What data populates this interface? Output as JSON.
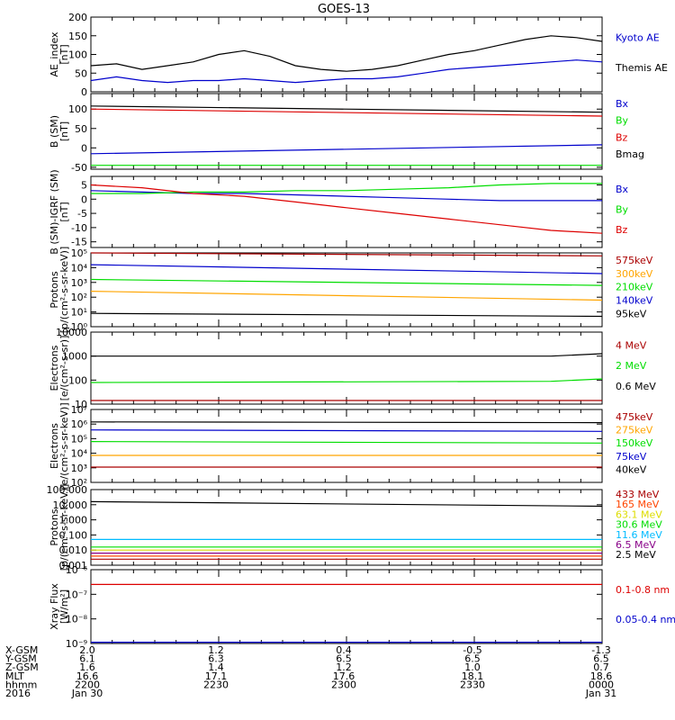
{
  "title": "GOES-13",
  "colors": {
    "black": "#000000",
    "blue": "#0000cc",
    "red": "#dd0000",
    "green": "#00dd00",
    "orange": "#ffa500",
    "skyblue": "#00bbff",
    "purple": "#880088",
    "yellow": "#dddd00",
    "darkred": "#aa0000",
    "orangered": "#ff4400"
  },
  "chart_data": [
    {
      "type": "line",
      "ylabel": [
        "AE_index",
        "[nT]"
      ],
      "ylim": [
        0,
        200
      ],
      "yticks": [
        "0",
        "50",
        "100",
        "150",
        "200"
      ],
      "ytick_values": [
        0,
        50,
        100,
        150,
        200
      ],
      "legend_position": "right",
      "series": [
        {
          "name": "Kyoto AE",
          "color": "blue",
          "x": [
            0,
            0.05,
            0.1,
            0.15,
            0.2,
            0.25,
            0.3,
            0.35,
            0.4,
            0.45,
            0.5,
            0.55,
            0.6,
            0.65,
            0.7,
            0.75,
            0.8,
            0.85,
            0.9,
            0.95,
            1.0
          ],
          "y": [
            30,
            40,
            30,
            25,
            30,
            30,
            35,
            30,
            25,
            30,
            35,
            35,
            40,
            50,
            60,
            65,
            70,
            75,
            80,
            85,
            80
          ]
        },
        {
          "name": "Themis AE",
          "color": "black",
          "x": [
            0,
            0.05,
            0.1,
            0.15,
            0.2,
            0.25,
            0.3,
            0.35,
            0.4,
            0.45,
            0.5,
            0.55,
            0.6,
            0.65,
            0.7,
            0.75,
            0.8,
            0.85,
            0.9,
            0.95,
            1.0
          ],
          "y": [
            70,
            75,
            60,
            70,
            80,
            100,
            110,
            95,
            70,
            60,
            55,
            60,
            70,
            85,
            100,
            110,
            125,
            140,
            150,
            145,
            135
          ]
        }
      ]
    },
    {
      "type": "line",
      "ylabel": [
        "B (SM)",
        "[nT]"
      ],
      "ylim": [
        -55,
        140
      ],
      "yticks": [
        "-50",
        "0",
        "50",
        "100"
      ],
      "ytick_values": [
        -50,
        0,
        50,
        100
      ],
      "legend_position": "right",
      "series": [
        {
          "name": "Bx",
          "color": "blue",
          "x": [
            0,
            1
          ],
          "y": [
            -15,
            8
          ]
        },
        {
          "name": "By",
          "color": "green",
          "x": [
            0,
            1
          ],
          "y": [
            -45,
            -45
          ]
        },
        {
          "name": "Bz",
          "color": "red",
          "x": [
            0,
            1
          ],
          "y": [
            100,
            82
          ]
        },
        {
          "name": "Bmag",
          "color": "black",
          "x": [
            0,
            1
          ],
          "y": [
            108,
            92
          ]
        }
      ]
    },
    {
      "type": "line",
      "ylabel": [
        "B (SM)-IGRF (SM)",
        "[nT]"
      ],
      "ylim": [
        -17,
        8
      ],
      "yticks": [
        "-15",
        "-10",
        "-5",
        "0",
        "5"
      ],
      "ytick_values": [
        -15,
        -10,
        -5,
        0,
        5
      ],
      "legend_position": "right",
      "series": [
        {
          "name": "Bx",
          "color": "blue",
          "x": [
            0,
            0.1,
            0.2,
            0.3,
            0.4,
            0.5,
            0.6,
            0.7,
            0.8,
            0.9,
            1.0
          ],
          "y": [
            3,
            2.5,
            2,
            2,
            1.5,
            1,
            0.5,
            0,
            -0.5,
            -0.5,
            -0.5
          ]
        },
        {
          "name": "By",
          "color": "green",
          "x": [
            0,
            0.1,
            0.2,
            0.3,
            0.4,
            0.5,
            0.6,
            0.7,
            0.8,
            0.9,
            1.0
          ],
          "y": [
            2,
            2,
            2.5,
            2.5,
            3,
            3,
            3.5,
            4,
            5,
            5.5,
            5.5
          ]
        },
        {
          "name": "Bz",
          "color": "red",
          "x": [
            0,
            0.1,
            0.2,
            0.3,
            0.4,
            0.5,
            0.6,
            0.7,
            0.8,
            0.9,
            1.0
          ],
          "y": [
            5,
            4,
            2,
            1,
            -1,
            -3,
            -5,
            -7,
            -9,
            -11,
            -12
          ]
        }
      ]
    },
    {
      "type": "line",
      "ylabel": [
        "Protons",
        "[p/(cm²-s-sr-keV)]"
      ],
      "scale": "log",
      "ylim_exp": [
        0,
        5
      ],
      "yticks": [
        "10⁰",
        "10¹",
        "10²",
        "10³",
        "10⁴",
        "10⁵"
      ],
      "ytick_values": [
        0,
        1,
        2,
        3,
        4,
        5
      ],
      "legend_position": "right",
      "series": [
        {
          "name": "575keV",
          "color": "darkred",
          "x": [
            0,
            1
          ],
          "y_log10": [
            5.0,
            4.8
          ]
        },
        {
          "name": "300keV",
          "color": "orange",
          "x": [
            0,
            1
          ],
          "y_log10": [
            2.4,
            1.8
          ]
        },
        {
          "name": "210keV",
          "color": "green",
          "x": [
            0,
            1
          ],
          "y_log10": [
            3.2,
            2.8
          ]
        },
        {
          "name": "140keV",
          "color": "blue",
          "x": [
            0,
            1
          ],
          "y_log10": [
            4.2,
            3.6
          ]
        },
        {
          "name": "95keV",
          "color": "black",
          "x": [
            0,
            1
          ],
          "y_log10": [
            0.9,
            0.7
          ]
        }
      ]
    },
    {
      "type": "line",
      "ylabel": [
        "Electrons",
        "[e/(cm²-s-sr)]"
      ],
      "scale": "log",
      "ylim_exp": [
        1,
        4
      ],
      "yticks": [
        "10",
        "100",
        "1000",
        "10000"
      ],
      "ytick_values": [
        1,
        2,
        3,
        4
      ],
      "legend_position": "right",
      "series": [
        {
          "name": "4 MeV",
          "color": "darkred",
          "x": [
            0,
            1
          ],
          "y_log10": [
            1.15,
            1.15
          ]
        },
        {
          "name": "2 MeV",
          "color": "green",
          "x": [
            0,
            0.9,
            1
          ],
          "y_log10": [
            1.9,
            1.95,
            2.05
          ]
        },
        {
          "name": "0.6 MeV",
          "color": "black",
          "x": [
            0,
            0.9,
            1
          ],
          "y_log10": [
            3.0,
            3.0,
            3.1
          ]
        }
      ]
    },
    {
      "type": "line",
      "ylabel": [
        "Electrons",
        "[e/(cm²-s-sr-keV)]"
      ],
      "scale": "log",
      "ylim_exp": [
        2,
        7
      ],
      "yticks": [
        "10²",
        "10³",
        "10⁴",
        "10⁵",
        "10⁶",
        "10⁷"
      ],
      "ytick_values": [
        2,
        3,
        4,
        5,
        6,
        7
      ],
      "legend_position": "right",
      "series": [
        {
          "name": "475keV",
          "color": "darkred",
          "x": [
            0,
            1
          ],
          "y_log10": [
            3.05,
            3.05
          ]
        },
        {
          "name": "275keV",
          "color": "orange",
          "x": [
            0,
            1
          ],
          "y_log10": [
            3.85,
            3.85
          ]
        },
        {
          "name": "150keV",
          "color": "green",
          "x": [
            0,
            1
          ],
          "y_log10": [
            4.8,
            4.7
          ]
        },
        {
          "name": "75keV",
          "color": "blue",
          "x": [
            0,
            1
          ],
          "y_log10": [
            5.6,
            5.5
          ]
        },
        {
          "name": "40keV",
          "color": "black",
          "x": [
            0,
            1
          ],
          "y_log10": [
            6.15,
            6.1
          ]
        }
      ]
    },
    {
      "type": "line",
      "ylabel": [
        "Protons",
        "[p/(cm²-s-sr-keV)]"
      ],
      "scale": "log",
      "ylim_exp": [
        -3,
        2
      ],
      "yticks": [
        "0.001",
        "0.010",
        "0.100",
        "1.000",
        "10.000",
        "100.000"
      ],
      "ytick_values": [
        -3,
        -2,
        -1,
        0,
        1,
        2
      ],
      "legend_position": "right",
      "series": [
        {
          "name": "433 MeV",
          "color": "darkred",
          "x": [
            0,
            1
          ],
          "y_log10": [
            -2.6,
            -2.6
          ]
        },
        {
          "name": "165 MeV",
          "color": "orangered",
          "x": [
            0,
            1
          ],
          "y_log10": [
            -2.4,
            -2.4
          ]
        },
        {
          "name": "63.1 MeV",
          "color": "yellow",
          "x": [
            0,
            1
          ],
          "y_log10": [
            -2.0,
            -2.0
          ]
        },
        {
          "name": "30.6 MeV",
          "color": "green",
          "x": [
            0,
            1
          ],
          "y_log10": [
            -1.8,
            -1.8
          ]
        },
        {
          "name": "11.6 MeV",
          "color": "skyblue",
          "x": [
            0,
            1
          ],
          "y_log10": [
            -1.3,
            -1.3
          ]
        },
        {
          "name": "6.5 MeV",
          "color": "purple",
          "x": [
            0,
            1
          ],
          "y_log10": [
            -2.2,
            -2.2
          ]
        },
        {
          "name": "2.5 MeV",
          "color": "black",
          "x": [
            0,
            1
          ],
          "y_log10": [
            1.2,
            0.9
          ]
        }
      ]
    },
    {
      "type": "line",
      "ylabel": [
        "Xray Flux",
        "[W/m²]"
      ],
      "scale": "log",
      "ylim_exp": [
        -9,
        -6
      ],
      "yticks": [
        "10⁻⁹",
        "10⁻⁸",
        "10⁻⁷",
        "10⁻⁶"
      ],
      "ytick_values": [
        -9,
        -8,
        -7,
        -6
      ],
      "legend_position": "right",
      "series": [
        {
          "name": "0.1-0.8 nm",
          "color": "red",
          "x": [
            0,
            1
          ],
          "y_log10": [
            -6.6,
            -6.6
          ]
        },
        {
          "name": "0.05-0.4 nm",
          "color": "blue",
          "x": [
            0,
            1
          ],
          "y_log10": [
            -8.95,
            -8.95
          ]
        }
      ]
    }
  ],
  "ephemeris": {
    "row_labels": [
      "X-GSM",
      "Y-GSM",
      "Z-GSM",
      "MLT",
      "hhmm",
      "2016"
    ],
    "columns": [
      {
        "values": [
          "2.0",
          "6.1",
          "1.6",
          "16.6",
          "2200",
          "Jan 30"
        ]
      },
      {
        "values": [
          "1.2",
          "6.3",
          "1.4",
          "17.1",
          "2230",
          ""
        ]
      },
      {
        "values": [
          "0.4",
          "6.5",
          "1.2",
          "17.6",
          "2300",
          ""
        ]
      },
      {
        "values": [
          "-0.5",
          "6.5",
          "1.0",
          "18.1",
          "2330",
          ""
        ]
      },
      {
        "values": [
          "-1.3",
          "6.5",
          "0.7",
          "18.6",
          "0000",
          "Jan 31"
        ]
      }
    ]
  }
}
